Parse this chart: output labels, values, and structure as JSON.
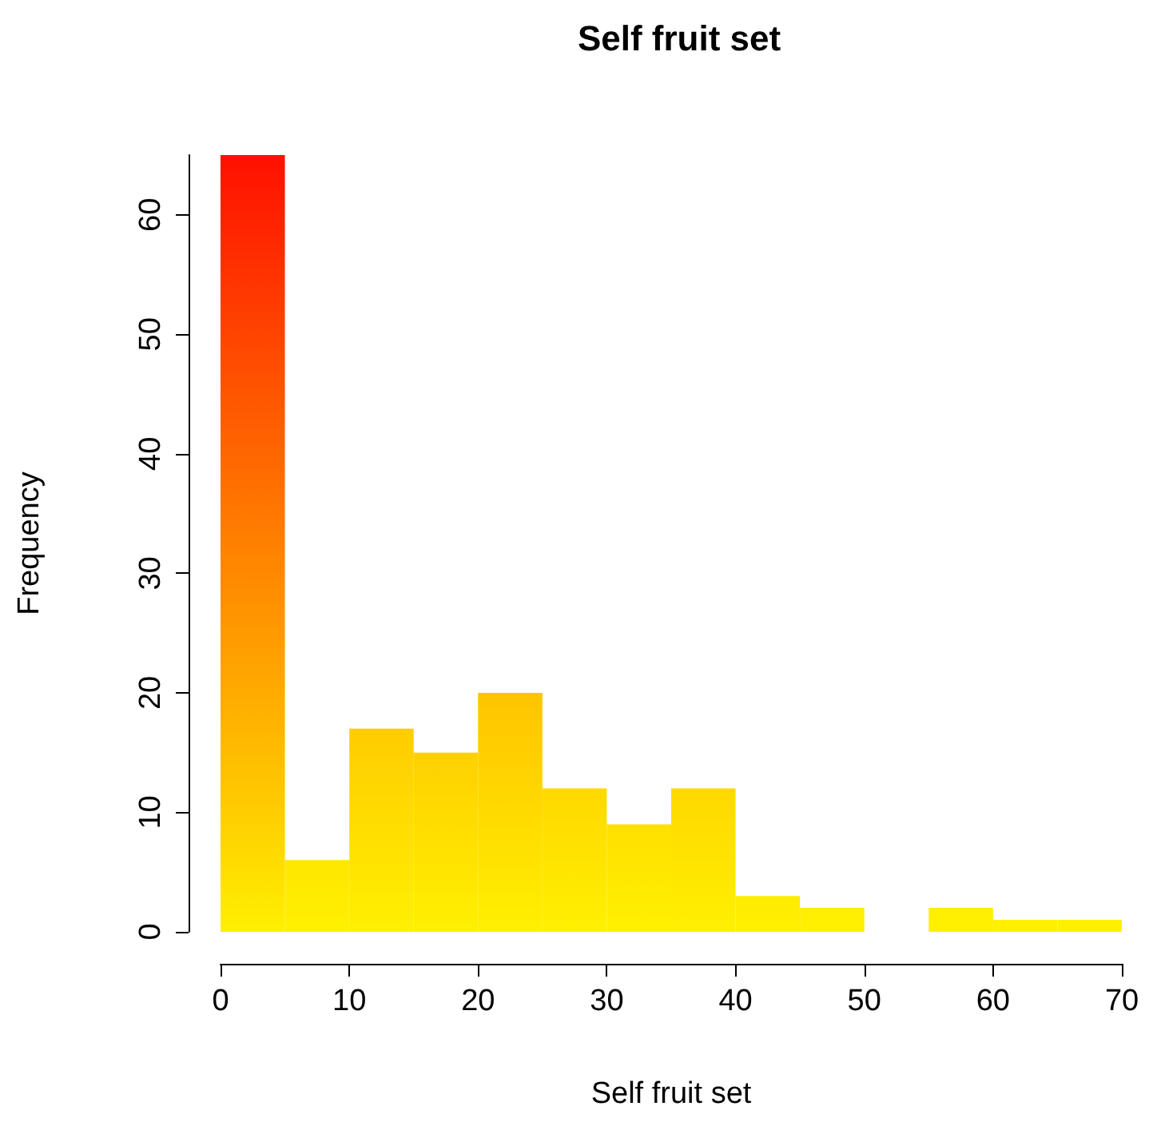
{
  "chart_data": {
    "type": "histogram",
    "title": "Self fruit set",
    "xlabel": "Self fruit set",
    "ylabel": "Frequency",
    "bins": [
      0,
      5,
      10,
      15,
      20,
      25,
      30,
      35,
      40,
      45,
      50,
      55,
      60,
      65,
      70
    ],
    "values": [
      65,
      6,
      17,
      15,
      20,
      12,
      9,
      12,
      3,
      2,
      0,
      2,
      1,
      1
    ],
    "colors": [
      "#ff1000",
      "#ffe600",
      "#ffcc00",
      "#ffd000",
      "#ffc400",
      "#ffd800",
      "#ffe000",
      "#ffd800",
      "#ffec00",
      "#ffee00",
      "#fff000",
      "#ffee00",
      "#fff000",
      "#fff000"
    ],
    "xlim": [
      0,
      70
    ],
    "xticks": [
      0,
      10,
      20,
      30,
      40,
      50,
      60,
      70
    ],
    "ylim": [
      0,
      65
    ],
    "yticks": [
      0,
      10,
      20,
      30,
      40,
      50,
      60
    ],
    "grid": false
  }
}
